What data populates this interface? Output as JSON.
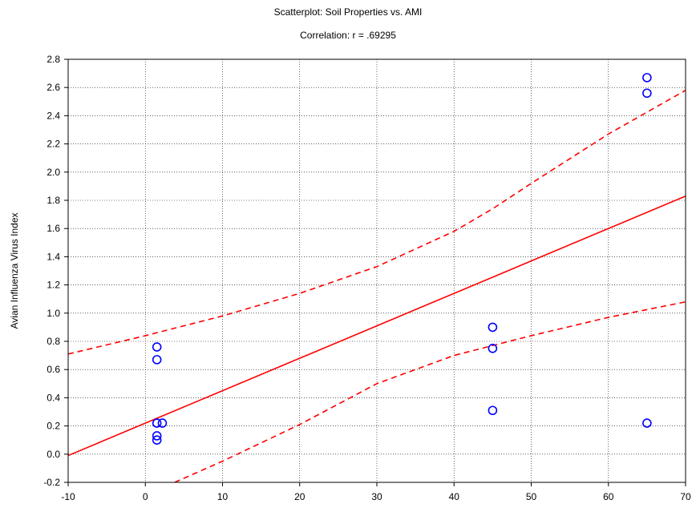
{
  "chart_data": {
    "type": "scatter",
    "title": "Scatterplot:  Soil Properties  vs. AMI",
    "subtitle": "Correlation: r = .69295",
    "xlabel": "",
    "ylabel": "Avian Influenza Virus  Index",
    "xlim": [
      -10,
      70
    ],
    "ylim": [
      -0.2,
      2.8
    ],
    "x_ticks": [
      -10,
      0,
      10,
      20,
      30,
      40,
      50,
      60,
      70
    ],
    "y_ticks": [
      -0.2,
      0.0,
      0.2,
      0.4,
      0.6,
      0.8,
      1.0,
      1.2,
      1.4,
      1.6,
      1.8,
      2.0,
      2.2,
      2.4,
      2.6,
      2.8
    ],
    "grid": true,
    "points": [
      {
        "x": 1.5,
        "y": 0.76
      },
      {
        "x": 1.5,
        "y": 0.67
      },
      {
        "x": 1.5,
        "y": 0.22
      },
      {
        "x": 2.2,
        "y": 0.22
      },
      {
        "x": 1.5,
        "y": 0.13
      },
      {
        "x": 1.5,
        "y": 0.1
      },
      {
        "x": 45,
        "y": 0.9
      },
      {
        "x": 45,
        "y": 0.75
      },
      {
        "x": 45,
        "y": 0.31
      },
      {
        "x": 65,
        "y": 2.67
      },
      {
        "x": 65,
        "y": 2.56
      },
      {
        "x": 65,
        "y": 0.22
      }
    ],
    "regression_line": {
      "x": [
        -10,
        70
      ],
      "y": [
        -0.01,
        1.83
      ]
    },
    "confidence_upper": {
      "x": [
        -10,
        0,
        10,
        20,
        30,
        40,
        45,
        50,
        60,
        70
      ],
      "y": [
        0.71,
        0.84,
        0.98,
        1.14,
        1.33,
        1.58,
        1.74,
        1.92,
        2.27,
        2.58
      ]
    },
    "confidence_lower": {
      "x": [
        3.8,
        10,
        20,
        30,
        40,
        45,
        50,
        60,
        70
      ],
      "y": [
        -0.2,
        -0.05,
        0.21,
        0.5,
        0.7,
        0.77,
        0.84,
        0.97,
        1.08
      ]
    },
    "colors": {
      "points": "#0000ff",
      "lines": "#ff0000",
      "grid": "#000000"
    }
  }
}
